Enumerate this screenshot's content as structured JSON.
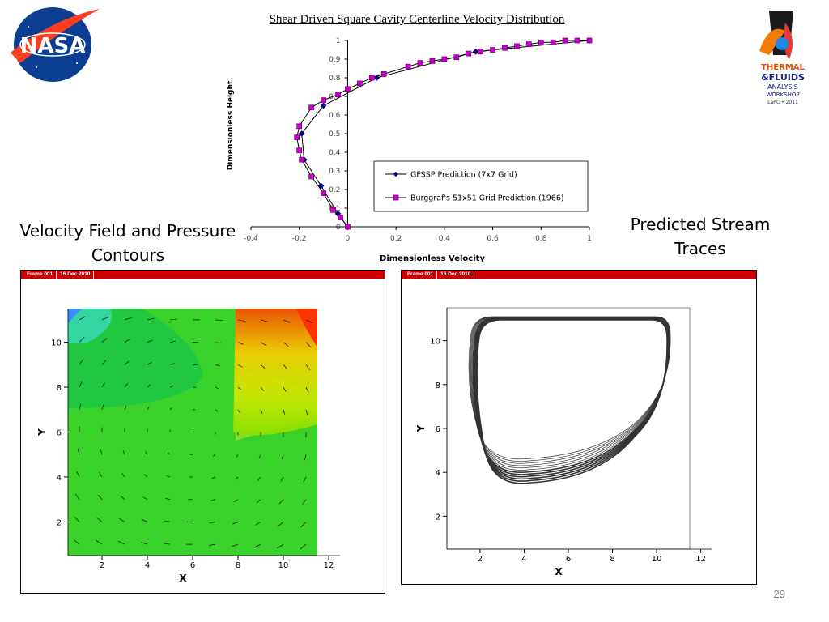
{
  "slide": {
    "title": "Shear Driven Square Cavity Centerline Velocity Distribution",
    "caption_left": "Velocity Field and Pressure Contours",
    "caption_right": "Predicted Stream Traces",
    "page_number": "29",
    "logo_left": "NASA",
    "logo_right": "THERMAL & FLUIDS ANALYSIS WORKSHOP LaRC • 2011"
  },
  "chart_data": [
    {
      "type": "line",
      "title": "Shear Driven Square Cavity Centerline Velocity Distribution",
      "xlabel": "Dimensionless Velocity",
      "ylabel": "Dimensionless Height",
      "xlim": [
        -0.4,
        1
      ],
      "ylim": [
        0,
        1
      ],
      "x_ticks": [
        "-0.4",
        "-0.2",
        "0",
        "0.2",
        "0.4",
        "0.6",
        "0.8",
        "1"
      ],
      "y_ticks": [
        "0",
        "0.1",
        "0.2",
        "0.3",
        "0.4",
        "0.5",
        "0.6",
        "0.7",
        "0.8",
        "0.9",
        "1"
      ],
      "grid": false,
      "legend_position": "bottom-right",
      "series": [
        {
          "name": "GFSSP Prediction (7x7 Grid)",
          "color": "#000080",
          "marker": "diamond",
          "points": [
            [
              0,
              0
            ],
            [
              -0.04,
              0.07
            ],
            [
              -0.11,
              0.22
            ],
            [
              -0.18,
              0.36
            ],
            [
              -0.19,
              0.5
            ],
            [
              -0.1,
              0.65
            ],
            [
              0.12,
              0.8
            ],
            [
              0.53,
              0.94
            ],
            [
              1,
              1
            ]
          ]
        },
        {
          "name": "Burggraf's 51x51 Grid Prediction (1966)",
          "color": "#cc00cc",
          "marker": "square",
          "points": [
            [
              0,
              0
            ],
            [
              -0.03,
              0.05
            ],
            [
              -0.06,
              0.09
            ],
            [
              -0.1,
              0.18
            ],
            [
              -0.15,
              0.27
            ],
            [
              -0.19,
              0.36
            ],
            [
              -0.2,
              0.41
            ],
            [
              -0.21,
              0.48
            ],
            [
              -0.2,
              0.54
            ],
            [
              -0.15,
              0.64
            ],
            [
              -0.1,
              0.68
            ],
            [
              -0.04,
              0.71
            ],
            [
              0,
              0.74
            ],
            [
              0.05,
              0.77
            ],
            [
              0.1,
              0.8
            ],
            [
              0.15,
              0.82
            ],
            [
              0.25,
              0.86
            ],
            [
              0.3,
              0.88
            ],
            [
              0.35,
              0.89
            ],
            [
              0.4,
              0.9
            ],
            [
              0.45,
              0.91
            ],
            [
              0.5,
              0.93
            ],
            [
              0.55,
              0.94
            ],
            [
              0.6,
              0.95
            ],
            [
              0.65,
              0.96
            ],
            [
              0.7,
              0.97
            ],
            [
              0.75,
              0.98
            ],
            [
              0.8,
              0.99
            ],
            [
              0.85,
              0.99
            ],
            [
              0.9,
              1.0
            ],
            [
              0.95,
              1.0
            ],
            [
              1,
              1.0
            ]
          ]
        }
      ]
    },
    {
      "type": "heatmap",
      "frame_header": [
        "Frame 001",
        "16 Dec 2010"
      ],
      "xlabel": "X",
      "ylabel": "Y",
      "xlim": [
        0.5,
        11.5
      ],
      "ylim": [
        0.5,
        11.5
      ],
      "x_ticks": [
        "2",
        "4",
        "6",
        "8",
        "10",
        "12"
      ],
      "y_ticks": [
        "2",
        "4",
        "6",
        "8",
        "10"
      ],
      "description_colors": {
        "low": "#2060ff",
        "mid": "#2ccd2c",
        "high": "#ff4000"
      }
    },
    {
      "type": "scatter",
      "frame_header": [
        "Frame 001",
        "16 Dec 2010"
      ],
      "xlabel": "X",
      "ylabel": "Y",
      "xlim": [
        0.5,
        11.5
      ],
      "ylim": [
        0.5,
        11.5
      ],
      "x_ticks": [
        "2",
        "4",
        "6",
        "8",
        "10",
        "12"
      ],
      "y_ticks": [
        "2",
        "4",
        "6",
        "8",
        "10"
      ]
    }
  ]
}
